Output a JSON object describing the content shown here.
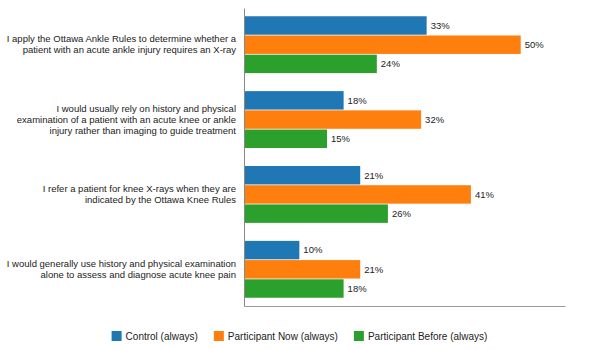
{
  "chart_data": {
    "type": "bar",
    "orientation": "horizontal",
    "categories": [
      "I would generally use history and physical examination\nalone to assess and diagnose acute knee pain",
      "I refer a patient for knee X-rays when they are\nindicated by the Ottawa Knee Rules",
      "I would usually rely on history and physical\nexamination of a patient with an acute knee or ankle\ninjury rather than imaging to guide treatment",
      "I apply the Ottawa Ankle Rules to determine whether a\npatient with an acute ankle injury requires an X-ray"
    ],
    "series": [
      {
        "name": "Control (always)",
        "values": [
          10,
          21,
          18,
          33
        ],
        "value_labels": [
          "10%",
          "21%",
          "18%",
          "33%"
        ]
      },
      {
        "name": "Participant Now (always)",
        "values": [
          21,
          41,
          32,
          50
        ],
        "value_labels": [
          "21%",
          "41%",
          "32%",
          "50%"
        ]
      },
      {
        "name": "Participant Before (always)",
        "values": [
          18,
          26,
          15,
          24
        ],
        "value_labels": [
          "18%",
          "26%",
          "15%",
          "24%"
        ]
      }
    ],
    "xlim": [
      0,
      58
    ],
    "data_labels": true,
    "tick_labels": "y",
    "legend": "bottom",
    "grid": false
  }
}
